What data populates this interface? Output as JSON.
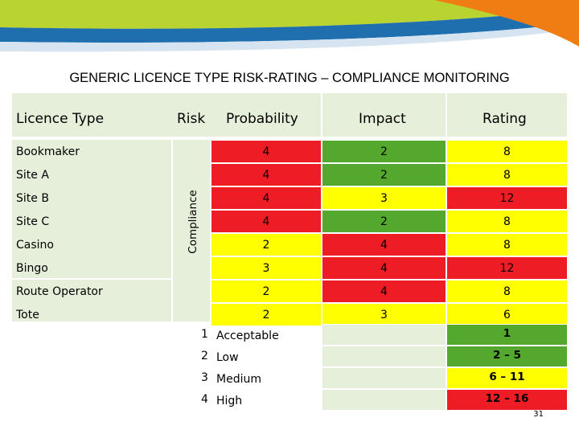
{
  "title": "GENERIC LICENCE TYPE RISK-RATING – COMPLIANCE MONITORING",
  "headers": {
    "licence_type": "Licence Type",
    "risk": "Risk",
    "probability": "Probability",
    "impact": "Impact",
    "rating": "Rating"
  },
  "compliance_label": "Compliance",
  "rows": [
    {
      "name": "Bookmaker",
      "probability": "4",
      "impact": "2",
      "rating": "8"
    },
    {
      "name": "Site A",
      "probability": "4",
      "impact": "2",
      "rating": "8"
    },
    {
      "name": "Site B",
      "probability": "4",
      "impact": "3",
      "rating": "12"
    },
    {
      "name": "Site C",
      "probability": "4",
      "impact": "2",
      "rating": "8"
    },
    {
      "name": "Casino",
      "probability": "2",
      "impact": "4",
      "rating": "8"
    },
    {
      "name": "Bingo",
      "probability": "3",
      "impact": "4",
      "rating": "12"
    },
    {
      "name": "Route Operator",
      "probability": "2",
      "impact": "4",
      "rating": "8"
    },
    {
      "name": "Tote",
      "probability": "2",
      "impact": "3",
      "rating": "6"
    }
  ],
  "legend": [
    {
      "num": "1",
      "label": "Acceptable",
      "range": "1"
    },
    {
      "num": "2",
      "label": "Low",
      "range": "2 – 5"
    },
    {
      "num": "3",
      "label": "Medium",
      "range": "6 – 11"
    },
    {
      "num": "4",
      "label": "High",
      "range": "12 – 16"
    }
  ],
  "colors": {
    "green": "#55a82e",
    "yellow": "#ffff00",
    "red": "#ee1c24",
    "panel": "#e6efd9"
  },
  "page_number": "31"
}
